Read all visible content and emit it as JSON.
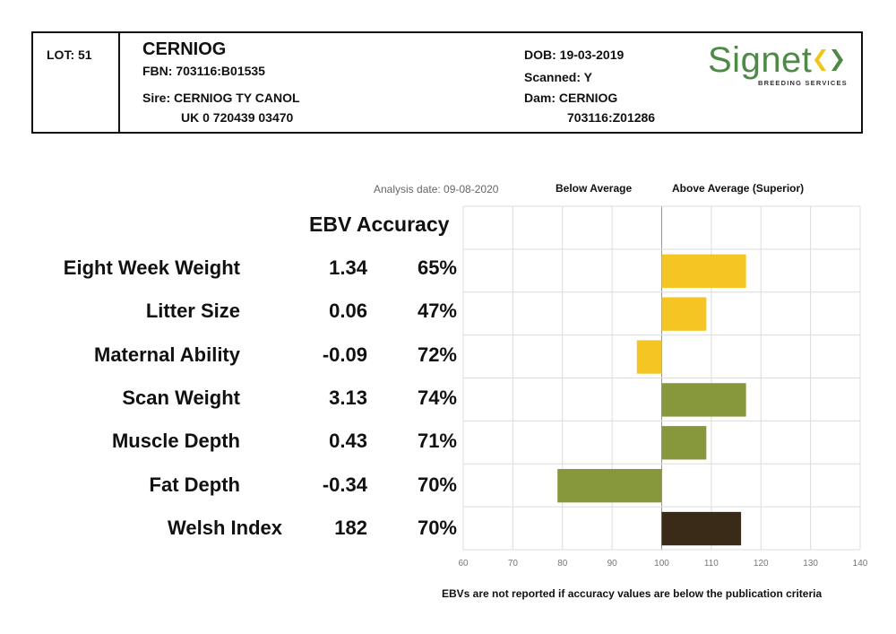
{
  "header": {
    "lot": "LOT: 51",
    "name": "CERNIOG",
    "fbn": "FBN: 703116:B01535",
    "sire": "Sire: CERNIOG TY CANOL",
    "sire_id": "UK 0 720439 03470",
    "dob": "DOB: 19-03-2019",
    "scanned": "Scanned: Y",
    "dam": "Dam: CERNIOG",
    "dam_id": "703116:Z01286"
  },
  "logo": {
    "word": "Signet",
    "sub": "BREEDING SERVICES",
    "mark_colors": [
      "#f2c318",
      "#4c8a45"
    ]
  },
  "legend": {
    "analysis_date": "Analysis date: 09-08-2020",
    "below": "Below Average",
    "above": "Above Average (Superior)",
    "column_heading": "EBV Accuracy"
  },
  "footnote": "EBVs are not reported if accuracy values are below the publication criteria",
  "traits": [
    {
      "name": "Eight Week Weight",
      "ebv": "1.34",
      "accuracy": "65%"
    },
    {
      "name": "Litter Size",
      "ebv": "0.06",
      "accuracy": "47%"
    },
    {
      "name": "Maternal Ability",
      "ebv": "-0.09",
      "accuracy": "72%"
    },
    {
      "name": "Scan Weight",
      "ebv": "3.13",
      "accuracy": "74%"
    },
    {
      "name": "Muscle Depth",
      "ebv": "0.43",
      "accuracy": "71%"
    },
    {
      "name": "Fat Depth",
      "ebv": "-0.34",
      "accuracy": "70%"
    },
    {
      "name": "Welsh Index",
      "ebv": "182",
      "accuracy": "70%"
    }
  ],
  "chart_data": {
    "type": "bar",
    "orientation": "horizontal",
    "baseline": 100,
    "xlim": [
      60,
      140
    ],
    "xticks": [
      "60",
      "70",
      "80",
      "90",
      "100",
      "110",
      "120",
      "130",
      "140"
    ],
    "grid": true,
    "categories": [
      "Eight Week Weight",
      "Litter Size",
      "Maternal Ability",
      "Scan Weight",
      "Muscle Depth",
      "Fat Depth",
      "Welsh Index"
    ],
    "values": [
      117,
      109,
      95,
      117,
      109,
      79,
      116
    ],
    "colors": [
      "#f5c623",
      "#f5c623",
      "#f5c623",
      "#87983c",
      "#87983c",
      "#87983c",
      "#3a2a18"
    ]
  }
}
